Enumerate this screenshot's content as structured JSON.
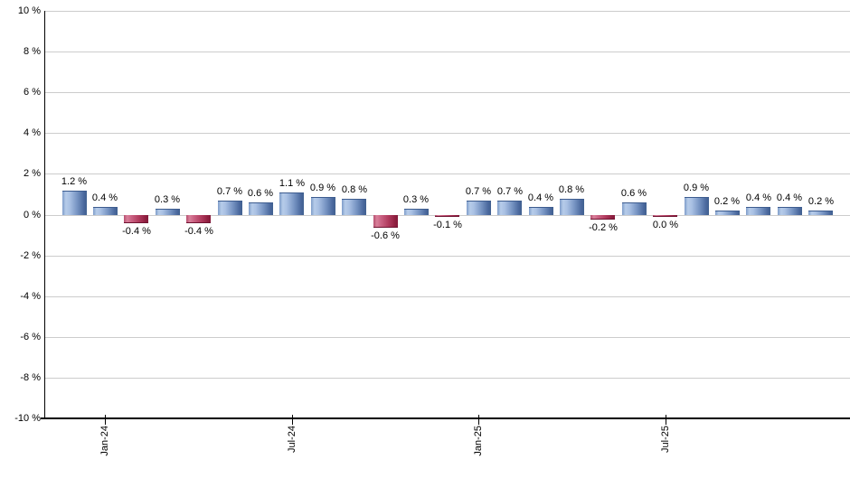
{
  "chart_data": {
    "type": "bar",
    "title": "",
    "xlabel": "",
    "ylabel": "",
    "unit": "%",
    "ylim": [
      -10,
      10
    ],
    "ytick_step": 2,
    "grid": true,
    "legend_position": "none",
    "yticks": [
      {
        "value": 10,
        "label": "10 %"
      },
      {
        "value": 8,
        "label": "8 %"
      },
      {
        "value": 6,
        "label": "6 %"
      },
      {
        "value": 4,
        "label": "4 %"
      },
      {
        "value": 2,
        "label": "2 %"
      },
      {
        "value": 0,
        "label": "0 %"
      },
      {
        "value": -2,
        "label": "-2 %"
      },
      {
        "value": -4,
        "label": "-4 %"
      },
      {
        "value": -6,
        "label": "-6 %"
      },
      {
        "value": -8,
        "label": "-8 %"
      },
      {
        "value": -10,
        "label": "-10 %"
      }
    ],
    "xticks": [
      {
        "label": "Jan-24",
        "bar_index": 1
      },
      {
        "label": "Jul-24",
        "bar_index": 7
      },
      {
        "label": "Jan-25",
        "bar_index": 13
      },
      {
        "label": "Jul-25",
        "bar_index": 19
      }
    ],
    "bars": [
      {
        "value": 1.2,
        "label": "1.2 %"
      },
      {
        "value": 0.4,
        "label": "0.4 %"
      },
      {
        "value": -0.4,
        "label": "-0.4 %"
      },
      {
        "value": 0.3,
        "label": "0.3 %"
      },
      {
        "value": -0.4,
        "label": "-0.4 %"
      },
      {
        "value": 0.7,
        "label": "0.7 %"
      },
      {
        "value": 0.6,
        "label": "0.6 %"
      },
      {
        "value": 1.1,
        "label": "1.1 %"
      },
      {
        "value": 0.9,
        "label": "0.9 %"
      },
      {
        "value": 0.8,
        "label": "0.8 %"
      },
      {
        "value": -0.6,
        "label": "-0.6 %"
      },
      {
        "value": 0.3,
        "label": "0.3 %"
      },
      {
        "value": -0.1,
        "label": "-0.1 %"
      },
      {
        "value": 0.7,
        "label": "0.7 %"
      },
      {
        "value": 0.7,
        "label": "0.7 %"
      },
      {
        "value": 0.4,
        "label": "0.4 %"
      },
      {
        "value": 0.8,
        "label": "0.8 %"
      },
      {
        "value": -0.2,
        "label": "-0.2 %"
      },
      {
        "value": 0.6,
        "label": "0.6 %"
      },
      {
        "value": 0.0,
        "label": "0.0 %"
      },
      {
        "value": 0.9,
        "label": "0.9 %"
      },
      {
        "value": 0.2,
        "label": "0.2 %"
      },
      {
        "value": 0.4,
        "label": "0.4 %"
      },
      {
        "value": 0.4,
        "label": "0.4 %"
      },
      {
        "value": 0.2,
        "label": "0.2 %"
      }
    ],
    "colors": {
      "positive_gradient": [
        "#7e9cc9",
        "#b6cce9",
        "#a9c0e3",
        "#7592c1",
        "#4a689e",
        "#41608f"
      ],
      "negative_gradient": [
        "#b75070",
        "#d8809a",
        "#cb6384",
        "#b03a5d",
        "#8f1f40",
        "#84193a"
      ],
      "positive_edge": "#3d5c8f",
      "negative_edge": "#6d1230",
      "gridline": "#cccccc",
      "axis": "#000000",
      "text": "#000000",
      "background": "#ffffff"
    }
  }
}
